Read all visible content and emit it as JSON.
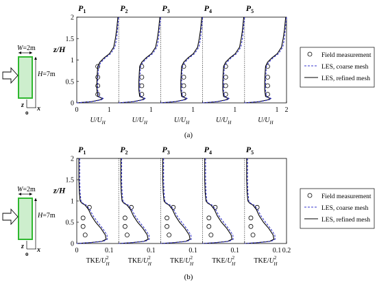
{
  "chart_data": [
    {
      "type": "line",
      "panel_caption": "(a)",
      "position_labels": [
        {
          "letter": "P",
          "sub": "1"
        },
        {
          "letter": "P",
          "sub": "2"
        },
        {
          "letter": "P",
          "sub": "3"
        },
        {
          "letter": "P",
          "sub": "4"
        },
        {
          "letter": "P",
          "sub": "5"
        }
      ],
      "ylabel": "z/H",
      "ylim": [
        0,
        2
      ],
      "yticks": [
        0,
        0.5,
        1,
        1.5,
        2
      ],
      "ytick_labels": [
        "0",
        "0.5",
        "1",
        "1.5",
        "2"
      ],
      "xlim": [
        0,
        2
      ],
      "xtick_labels": [
        "0",
        "1",
        "1",
        "1",
        "1",
        "1",
        "2"
      ],
      "xlabel": {
        "num": "U",
        "den": "U",
        "den_sub": "H"
      },
      "subplot_xmax": 1.0,
      "legend_position": "right",
      "legend": [
        {
          "label": "Field measurement",
          "kind": "marker",
          "color": "#000000"
        },
        {
          "label": "LES, coarse mesh",
          "kind": "dashed",
          "color": "#3333cc"
        },
        {
          "label": "LES, refined mesh",
          "kind": "solid",
          "color": "#000000"
        }
      ],
      "building": {
        "width_label": "W=2m",
        "height_label": "H=7m",
        "axis_z": "z",
        "axis_x": "x",
        "origin": "o"
      },
      "series": [
        {
          "name": "Field measurement",
          "subplot": 1,
          "points": [
            [
              0.5,
              0.2
            ],
            [
              0.5,
              0.4
            ],
            [
              0.5,
              0.6
            ],
            [
              0.5,
              0.85
            ]
          ]
        },
        {
          "name": "Field measurement",
          "subplot": 2,
          "points": [
            [
              0.55,
              0.2
            ],
            [
              0.55,
              0.4
            ],
            [
              0.55,
              0.6
            ],
            [
              0.55,
              0.85
            ]
          ]
        },
        {
          "name": "Field measurement",
          "subplot": 3,
          "points": [
            [
              0.55,
              0.2
            ],
            [
              0.55,
              0.4
            ],
            [
              0.55,
              0.6
            ],
            [
              0.55,
              0.85
            ]
          ]
        },
        {
          "name": "Field measurement",
          "subplot": 4,
          "points": [
            [
              0.55,
              0.2
            ],
            [
              0.55,
              0.4
            ],
            [
              0.55,
              0.6
            ],
            [
              0.55,
              0.85
            ]
          ]
        },
        {
          "name": "Field measurement",
          "subplot": 5,
          "points": [
            [
              0.55,
              0.2
            ],
            [
              0.55,
              0.4
            ],
            [
              0.55,
              0.6
            ],
            [
              0.55,
              0.85
            ]
          ]
        },
        {
          "name": "LES, refined mesh",
          "subplot": "all",
          "points": [
            [
              0.0,
              0.0
            ],
            [
              0.35,
              0.03
            ],
            [
              0.55,
              0.07
            ],
            [
              0.62,
              0.1
            ],
            [
              0.5,
              0.15
            ],
            [
              0.48,
              0.3
            ],
            [
              0.48,
              0.5
            ],
            [
              0.49,
              0.7
            ],
            [
              0.5,
              0.85
            ],
            [
              0.55,
              0.95
            ],
            [
              0.65,
              1.05
            ],
            [
              0.78,
              1.15
            ],
            [
              0.88,
              1.3
            ],
            [
              0.92,
              1.5
            ],
            [
              0.95,
              1.7
            ],
            [
              0.97,
              1.9
            ],
            [
              0.98,
              2.0
            ]
          ]
        },
        {
          "name": "LES, coarse mesh",
          "subplot": "all",
          "points": [
            [
              0.0,
              0.0
            ],
            [
              0.38,
              0.03
            ],
            [
              0.58,
              0.07
            ],
            [
              0.64,
              0.1
            ],
            [
              0.52,
              0.15
            ],
            [
              0.5,
              0.3
            ],
            [
              0.5,
              0.5
            ],
            [
              0.51,
              0.7
            ],
            [
              0.52,
              0.85
            ],
            [
              0.58,
              0.95
            ],
            [
              0.68,
              1.05
            ],
            [
              0.81,
              1.15
            ],
            [
              0.91,
              1.3
            ],
            [
              0.95,
              1.5
            ],
            [
              0.97,
              1.7
            ],
            [
              0.99,
              1.9
            ],
            [
              1.0,
              2.0
            ]
          ]
        }
      ]
    },
    {
      "type": "line",
      "panel_caption": "(b)",
      "position_labels": [
        {
          "letter": "P",
          "sub": "1"
        },
        {
          "letter": "P",
          "sub": "2"
        },
        {
          "letter": "P",
          "sub": "3"
        },
        {
          "letter": "P",
          "sub": "4"
        },
        {
          "letter": "P",
          "sub": "5"
        }
      ],
      "ylabel": "z/H",
      "ylim": [
        0,
        2
      ],
      "yticks": [
        0,
        0.5,
        1,
        1.5,
        2
      ],
      "ytick_labels": [
        "0",
        "0.5",
        "1",
        "1.5",
        "2"
      ],
      "xlim": [
        0,
        0.2
      ],
      "xtick_labels": [
        "0",
        "0.1",
        "0.1",
        "0.1",
        "0.1",
        "0.1",
        "0.2"
      ],
      "xlabel": {
        "num": "TKE",
        "den": "U",
        "den_sub": "H",
        "den_sup": "2"
      },
      "subplot_xmax": 0.1,
      "legend_position": "right",
      "legend": [
        {
          "label": "Field measurement",
          "kind": "marker",
          "color": "#000000"
        },
        {
          "label": "LES, coarse mesh",
          "kind": "dashed",
          "color": "#3333cc"
        },
        {
          "label": "LES, refined mesh",
          "kind": "solid",
          "color": "#000000"
        }
      ],
      "building": {
        "width_label": "W=2m",
        "height_label": "H=7m",
        "axis_z": "z",
        "axis_x": "x",
        "origin": "o"
      },
      "series": [
        {
          "name": "Field measurement",
          "subplot": 1,
          "points": [
            [
              0.02,
              0.2
            ],
            [
              0.015,
              0.4
            ],
            [
              0.015,
              0.6
            ],
            [
              0.03,
              0.85
            ]
          ]
        },
        {
          "name": "Field measurement",
          "subplot": 2,
          "points": [
            [
              0.02,
              0.2
            ],
            [
              0.015,
              0.4
            ],
            [
              0.015,
              0.6
            ],
            [
              0.03,
              0.85
            ]
          ]
        },
        {
          "name": "Field measurement",
          "subplot": 3,
          "points": [
            [
              0.02,
              0.2
            ],
            [
              0.015,
              0.4
            ],
            [
              0.015,
              0.6
            ],
            [
              0.03,
              0.85
            ]
          ]
        },
        {
          "name": "Field measurement",
          "subplot": 4,
          "points": [
            [
              0.02,
              0.2
            ],
            [
              0.015,
              0.4
            ],
            [
              0.015,
              0.6
            ],
            [
              0.03,
              0.85
            ]
          ]
        },
        {
          "name": "Field measurement",
          "subplot": 5,
          "points": [
            [
              0.02,
              0.2
            ],
            [
              0.015,
              0.4
            ],
            [
              0.015,
              0.6
            ],
            [
              0.03,
              0.85
            ]
          ]
        },
        {
          "name": "LES, refined mesh",
          "subplot": "all",
          "points": [
            [
              0.005,
              2.0
            ],
            [
              0.005,
              1.5
            ],
            [
              0.006,
              1.2
            ],
            [
              0.008,
              1.0
            ],
            [
              0.012,
              0.95
            ],
            [
              0.02,
              0.9
            ],
            [
              0.028,
              0.8
            ],
            [
              0.035,
              0.65
            ],
            [
              0.045,
              0.5
            ],
            [
              0.058,
              0.35
            ],
            [
              0.068,
              0.2
            ],
            [
              0.07,
              0.1
            ],
            [
              0.06,
              0.05
            ],
            [
              0.03,
              0.02
            ],
            [
              0.0,
              0.0
            ]
          ]
        },
        {
          "name": "LES, coarse mesh",
          "subplot": "all",
          "points": [
            [
              0.007,
              2.0
            ],
            [
              0.007,
              1.5
            ],
            [
              0.008,
              1.2
            ],
            [
              0.01,
              1.0
            ],
            [
              0.014,
              0.95
            ],
            [
              0.023,
              0.9
            ],
            [
              0.031,
              0.8
            ],
            [
              0.039,
              0.65
            ],
            [
              0.05,
              0.5
            ],
            [
              0.062,
              0.35
            ],
            [
              0.072,
              0.2
            ],
            [
              0.073,
              0.1
            ],
            [
              0.063,
              0.05
            ],
            [
              0.033,
              0.02
            ],
            [
              0.0,
              0.0
            ]
          ]
        }
      ]
    }
  ]
}
